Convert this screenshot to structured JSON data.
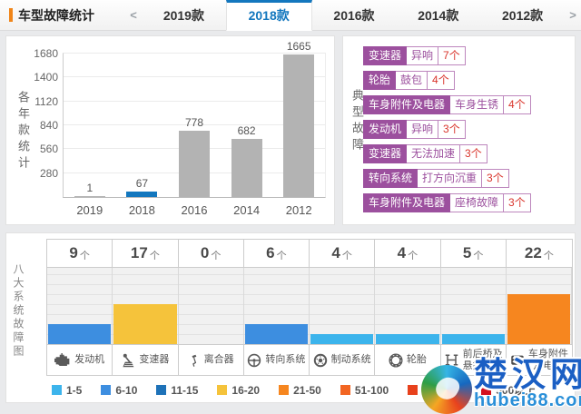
{
  "header": {
    "title": "车型故障统计",
    "nav_prev": "<",
    "nav_next": ">",
    "tabs": [
      {
        "label": "2019款",
        "active": false
      },
      {
        "label": "2018款",
        "active": true
      },
      {
        "label": "2016款",
        "active": false
      },
      {
        "label": "2014款",
        "active": false
      },
      {
        "label": "2012款",
        "active": false
      }
    ]
  },
  "yearly_panel": {
    "side_title": "各年款统计"
  },
  "faults_panel": {
    "side_title": "典型故障",
    "tags": [
      {
        "system": "变速器",
        "fault": "异响",
        "count": "7个"
      },
      {
        "system": "轮胎",
        "fault": "鼓包",
        "count": "4个"
      },
      {
        "system": "车身附件及电器",
        "fault": "车身生锈",
        "count": "4个"
      },
      {
        "system": "发动机",
        "fault": "异响",
        "count": "3个"
      },
      {
        "system": "变速器",
        "fault": "无法加速",
        "count": "3个"
      },
      {
        "system": "转向系统",
        "fault": "打方向沉重",
        "count": "3个"
      },
      {
        "system": "车身附件及电器",
        "fault": "座椅故障",
        "count": "3个"
      }
    ]
  },
  "systems_panel": {
    "side_title": "八大系统故障图",
    "count_suffix": "个"
  },
  "chart_data": [
    {
      "type": "bar",
      "title": "各年款统计",
      "categories": [
        "2019",
        "2018",
        "2016",
        "2014",
        "2012"
      ],
      "values": [
        1,
        67,
        778,
        682,
        1665
      ],
      "ylim": [
        0,
        1680
      ],
      "yticks": [
        280,
        560,
        840,
        1120,
        1400,
        1680
      ],
      "grid": true,
      "bar_color": "#b3b3b3",
      "highlight_index": 1,
      "highlight_color": "#1377be",
      "legend_position": "none"
    },
    {
      "type": "bar",
      "title": "八大系统故障图",
      "categories": [
        "发动机",
        "变速器",
        "离合器",
        "转向系统",
        "制动系统",
        "轮胎",
        "前后桥及悬挂系统",
        "车身附件及电器"
      ],
      "category_lines": [
        [
          "发动机"
        ],
        [
          "变速器"
        ],
        [
          "离合器"
        ],
        [
          "转向系统"
        ],
        [
          "制动系统"
        ],
        [
          "轮胎"
        ],
        [
          "前后桥及",
          "悬挂系统"
        ],
        [
          "车身附件",
          "及电器"
        ]
      ],
      "category_icons": [
        "engine-icon",
        "gearshift-icon",
        "clutch-icon",
        "steering-icon",
        "brake-icon",
        "tire-icon",
        "axle-icon",
        "body-electric-icon"
      ],
      "values": [
        9,
        17,
        0,
        6,
        4,
        4,
        5,
        22
      ],
      "buckets": [
        2,
        4,
        0,
        2,
        1,
        1,
        1,
        5
      ],
      "legend": [
        {
          "label": "1-5",
          "color": "#3cb4ec"
        },
        {
          "label": "6-10",
          "color": "#3d8ee0"
        },
        {
          "label": "11-15",
          "color": "#1e72b8"
        },
        {
          "label": "16-20",
          "color": "#f5c33b"
        },
        {
          "label": "21-50",
          "color": "#f6861f"
        },
        {
          "label": "51-100",
          "color": "#f26522"
        },
        {
          "label": "101-500",
          "color": "#e8411c"
        },
        {
          "label": "500以上",
          "color": "#d4111e"
        }
      ],
      "legend_position": "bottom"
    }
  ],
  "watermark": {
    "site_name": "楚汉网",
    "site_url": "hubei88.com"
  }
}
